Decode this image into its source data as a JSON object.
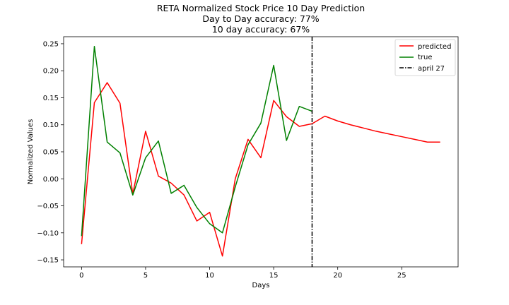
{
  "chart_data": {
    "type": "line",
    "title": "RETA Normalized Stock Price 10 Day Prediction",
    "subtitle_lines": [
      "Day to Day accuracy: 77%",
      "10 day accuracy: 67%"
    ],
    "xlabel": "Days",
    "ylabel": "Normalized Values",
    "xlim": [
      -1.4,
      29.4
    ],
    "ylim": [
      -0.163,
      0.263
    ],
    "xticks": [
      0,
      5,
      10,
      15,
      20,
      25
    ],
    "xtick_labels": [
      "0",
      "5",
      "10",
      "15",
      "20",
      "25"
    ],
    "yticks": [
      -0.15,
      -0.1,
      -0.05,
      0.0,
      0.05,
      0.1,
      0.15,
      0.2,
      0.25
    ],
    "ytick_labels": [
      "−0.15",
      "−0.10",
      "−0.05",
      "0.00",
      "0.05",
      "0.10",
      "0.15",
      "0.20",
      "0.25"
    ],
    "grid": false,
    "legend_position": "top-right",
    "series": [
      {
        "name": "predicted",
        "color": "#ff0000",
        "x": [
          0,
          1,
          2,
          3,
          4,
          5,
          6,
          7,
          8,
          9,
          10,
          11,
          12,
          13,
          14,
          15,
          16,
          17,
          18,
          19,
          20,
          21,
          22,
          23,
          24,
          25,
          26,
          27,
          28
        ],
        "values": [
          -0.121,
          0.141,
          0.178,
          0.14,
          -0.028,
          0.088,
          0.005,
          -0.008,
          -0.03,
          -0.078,
          -0.062,
          -0.143,
          0.0,
          0.073,
          0.039,
          0.145,
          0.115,
          0.097,
          0.102,
          0.116,
          0.107,
          0.1,
          0.094,
          0.088,
          0.083,
          0.078,
          0.073,
          0.068,
          0.068
        ]
      },
      {
        "name": "true",
        "color": "#008000",
        "x": [
          0,
          1,
          2,
          3,
          4,
          5,
          6,
          7,
          8,
          9,
          10,
          11,
          12,
          13,
          14,
          15,
          16,
          17,
          18
        ],
        "values": [
          -0.106,
          0.245,
          0.068,
          0.048,
          -0.03,
          0.039,
          0.07,
          -0.027,
          -0.012,
          -0.053,
          -0.083,
          -0.1,
          -0.015,
          0.063,
          0.103,
          0.21,
          0.071,
          0.134,
          0.125
        ]
      }
    ],
    "vertical_lines": [
      {
        "name": "april 27",
        "x": 18,
        "color": "#000000",
        "style": "dashdot"
      }
    ]
  }
}
